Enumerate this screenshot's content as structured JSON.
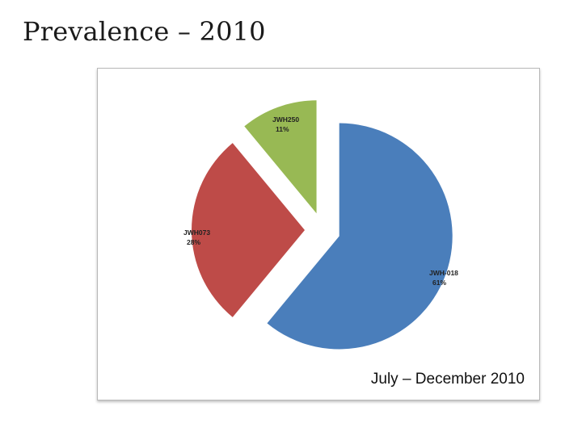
{
  "slide": {
    "title": "Prevalence – 2010"
  },
  "chart_data": {
    "type": "pie",
    "exploded": true,
    "subtitle": "July – December 2010",
    "slices": [
      {
        "label": "JWH-018",
        "value": 61,
        "value_label": "61%",
        "color": "#4a7ebb"
      },
      {
        "label": "JWH073",
        "value": 28,
        "value_label": "28%",
        "color": "#be4b48"
      },
      {
        "label": "JWH250",
        "value": 11,
        "value_label": "11%",
        "color": "#98b954"
      }
    ]
  }
}
